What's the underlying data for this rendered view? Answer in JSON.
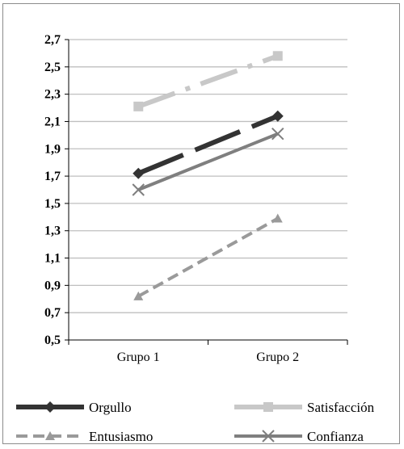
{
  "chart_data": {
    "type": "line",
    "categories": [
      "Grupo 1",
      "Grupo 2"
    ],
    "ylim": [
      0.5,
      2.7
    ],
    "yticks": [
      "2,7",
      "2,5",
      "2,3",
      "2,1",
      "1,9",
      "1,7",
      "1,5",
      "1,3",
      "1,1",
      "0,9",
      "0,7",
      "0,5"
    ],
    "grid": true,
    "legend_position": "bottom",
    "series": [
      {
        "name": "Orgullo",
        "values": [
          1.72,
          2.14
        ],
        "color": "#333333",
        "dash": "long-dash",
        "marker": "diamond"
      },
      {
        "name": "Satisfacción",
        "values": [
          2.21,
          2.58
        ],
        "color": "#c8c8c8",
        "dash": "dash-dot",
        "marker": "square"
      },
      {
        "name": "Entusiasmo",
        "values": [
          0.82,
          1.39
        ],
        "color": "#9a9a9a",
        "dash": "dash",
        "marker": "triangle"
      },
      {
        "name": "Confianza",
        "values": [
          1.6,
          2.01
        ],
        "color": "#7f7f7f",
        "dash": "solid",
        "marker": "x"
      }
    ]
  }
}
